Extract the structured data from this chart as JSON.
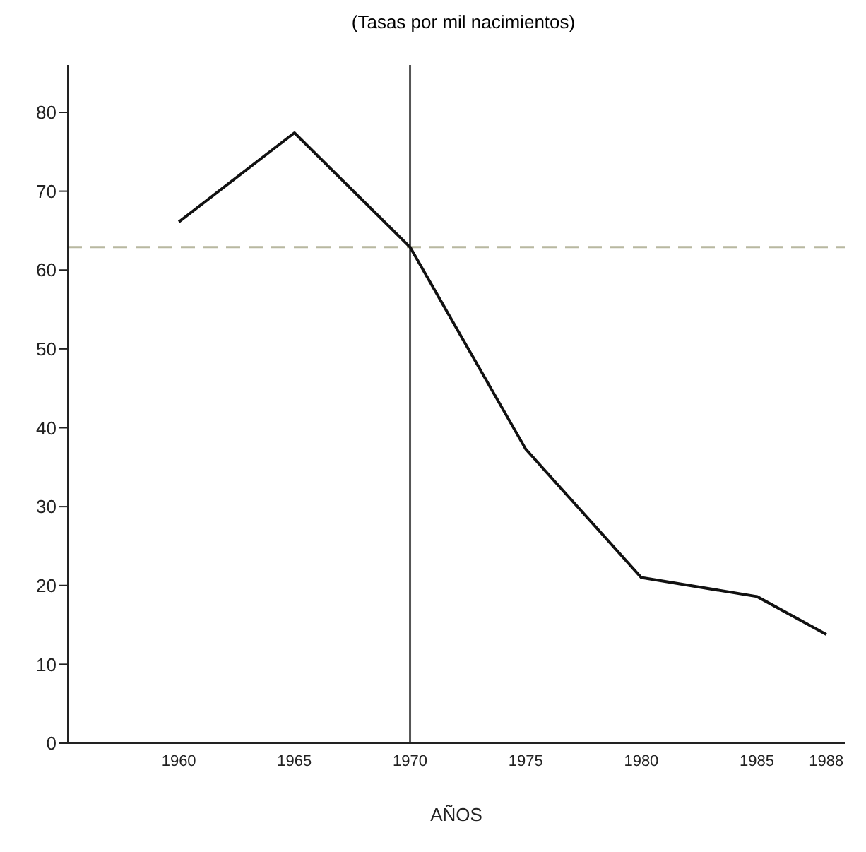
{
  "chart_data": {
    "type": "line",
    "title": "(Tasas por mil nacimientos)",
    "xlabel": "AÑOS",
    "x": [
      1960,
      1965,
      1970,
      1975,
      1980,
      1985,
      1988
    ],
    "series": [
      {
        "color": "#111111",
        "values": [
          66.1,
          77.4,
          62.9,
          37.3,
          21,
          18.6,
          13.8
        ]
      }
    ],
    "xlim": [
      1955.2,
      1988.8
    ],
    "xticks": [
      1960,
      1965,
      1970,
      1975,
      1980,
      1985,
      1988
    ],
    "ylim": [
      0,
      86
    ],
    "yticks": [
      0,
      10,
      20,
      30,
      40,
      50,
      60,
      70,
      80
    ],
    "ref_lines": [
      {
        "axis": "y",
        "value": 62.9,
        "color": "#b8b8a0",
        "line_style": "dashed"
      },
      {
        "axis": "x",
        "value": 1970,
        "color": "#555555",
        "line_style": "solid"
      }
    ],
    "grid": false,
    "legend": false,
    "marker": "none",
    "line_style": "solid"
  }
}
